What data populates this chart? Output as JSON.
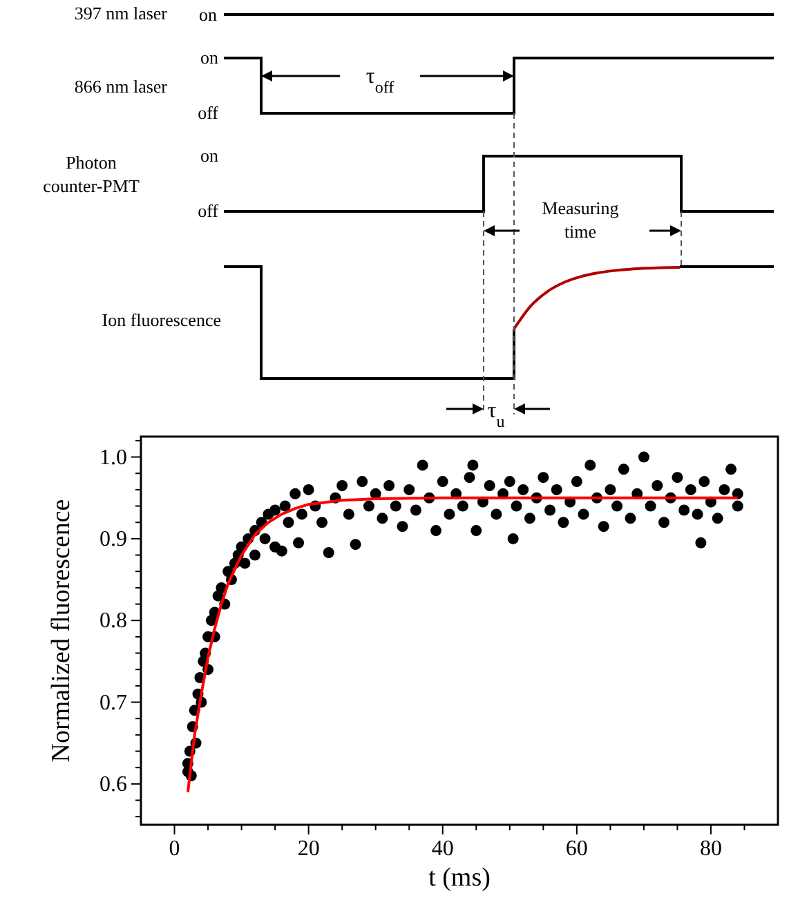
{
  "chart_data": [
    {
      "type": "other",
      "annotations": [
        "397 nm laser",
        "on",
        "866 nm laser",
        "on",
        "off",
        "τ$_{off}$",
        "Photon counter-PMT",
        "on",
        "off",
        "Measuring time",
        "Ion fluorescence",
        "τ$_{u}$"
      ]
    },
    {
      "type": "scatter",
      "xlabel": "t (ms)",
      "ylabel": "Normalized fluorescence",
      "xlim": [
        -5,
        90
      ],
      "ylim": [
        0.55,
        1.025
      ],
      "xticks": [
        0,
        {
          "value": 5,
          "label": null
        },
        {
          "value": 10,
          "label": null
        },
        {
          "value": 15,
          "label": null
        },
        20,
        {
          "value": 25,
          "label": null
        },
        {
          "value": 30,
          "label": null
        },
        {
          "value": 35,
          "label": null
        },
        40,
        {
          "value": 45,
          "label": null
        },
        {
          "value": 50,
          "label": null
        },
        {
          "value": 55,
          "label": null
        },
        60,
        {
          "value": 65,
          "label": null
        },
        {
          "value": 70,
          "label": null
        },
        {
          "value": 75,
          "label": null
        },
        80,
        {
          "value": 85,
          "label": null
        }
      ],
      "yticks": [
        {
          "value": 0.56,
          "label": null
        },
        {
          "value": 0.58,
          "label": null
        },
        0.6,
        {
          "value": 0.62,
          "label": null
        },
        {
          "value": 0.64,
          "label": null
        },
        {
          "value": 0.66,
          "label": null
        },
        {
          "value": 0.68,
          "label": null
        },
        0.7,
        {
          "value": 0.72,
          "label": null
        },
        {
          "value": 0.74,
          "label": null
        },
        {
          "value": 0.76,
          "label": null
        },
        {
          "value": 0.78,
          "label": null
        },
        0.8,
        {
          "value": 0.82,
          "label": null
        },
        {
          "value": 0.84,
          "label": null
        },
        {
          "value": 0.86,
          "label": null
        },
        {
          "value": 0.88,
          "label": null
        },
        0.9,
        {
          "value": 0.92,
          "label": null
        },
        {
          "value": 0.94,
          "label": null
        },
        {
          "value": 0.96,
          "label": null
        },
        {
          "value": 0.98,
          "label": null
        },
        {
          "value": 1,
          "label": "1.0"
        },
        {
          "value": 1.02,
          "label": null
        }
      ],
      "series": [
        {
          "type": "scatter",
          "color": "#000000",
          "marker": "circle",
          "x": [
            2,
            2,
            2.3,
            2.5,
            2.7,
            3,
            3.2,
            3.5,
            3.8,
            4,
            4.3,
            4.6,
            5,
            5,
            5.5,
            6,
            6,
            6.5,
            7,
            7.5,
            8,
            8.5,
            9,
            9.5,
            10,
            10.5,
            11,
            12,
            12,
            13,
            13.5,
            14,
            15,
            15,
            16,
            16.5,
            17,
            18,
            18.5,
            19,
            20,
            21,
            22,
            23,
            24,
            25,
            26,
            27,
            28,
            29,
            30,
            31,
            32,
            33,
            34,
            35,
            36,
            37,
            38,
            39,
            40,
            41,
            42,
            43,
            44,
            44.5,
            45,
            46,
            47,
            48,
            49,
            50,
            50.5,
            51,
            52,
            53,
            54,
            55,
            56,
            57,
            58,
            59,
            60,
            61,
            62,
            63,
            64,
            65,
            66,
            67,
            68,
            69,
            70,
            71,
            72,
            73,
            74,
            75,
            76,
            77,
            78,
            78.5,
            79,
            80,
            81,
            82,
            83,
            84,
            84
          ],
          "values": [
            0.615,
            0.625,
            0.64,
            0.61,
            0.67,
            0.69,
            0.65,
            0.71,
            0.73,
            0.7,
            0.75,
            0.76,
            0.78,
            0.74,
            0.8,
            0.81,
            0.78,
            0.83,
            0.84,
            0.82,
            0.86,
            0.85,
            0.87,
            0.88,
            0.89,
            0.87,
            0.9,
            0.91,
            0.88,
            0.92,
            0.9,
            0.93,
            0.935,
            0.89,
            0.885,
            0.94,
            0.92,
            0.955,
            0.895,
            0.93,
            0.96,
            0.94,
            0.92,
            0.883,
            0.95,
            0.965,
            0.93,
            0.893,
            0.97,
            0.94,
            0.955,
            0.925,
            0.965,
            0.94,
            0.915,
            0.96,
            0.935,
            0.99,
            0.95,
            0.91,
            0.97,
            0.93,
            0.955,
            0.94,
            0.975,
            0.99,
            0.91,
            0.945,
            0.965,
            0.93,
            0.955,
            0.97,
            0.9,
            0.94,
            0.96,
            0.925,
            0.95,
            0.975,
            0.935,
            0.96,
            0.92,
            0.945,
            0.97,
            0.93,
            0.99,
            0.95,
            0.915,
            0.96,
            0.94,
            0.985,
            0.925,
            0.955,
            1,
            0.94,
            0.965,
            0.92,
            0.95,
            0.975,
            0.935,
            0.96,
            0.93,
            0.895,
            0.97,
            0.945,
            0.925,
            0.96,
            0.985,
            0.94,
            0.955
          ]
        },
        {
          "type": "line",
          "color": "#ff0000",
          "x": [
            2,
            3,
            4,
            5,
            6,
            7,
            8,
            10,
            12,
            14,
            16,
            18,
            20,
            25,
            30,
            40,
            60,
            84
          ],
          "values": [
            0.59,
            0.66,
            0.71,
            0.755,
            0.79,
            0.82,
            0.845,
            0.88,
            0.905,
            0.92,
            0.93,
            0.937,
            0.942,
            0.947,
            0.949,
            0.95,
            0.95,
            0.95
          ]
        }
      ]
    }
  ]
}
